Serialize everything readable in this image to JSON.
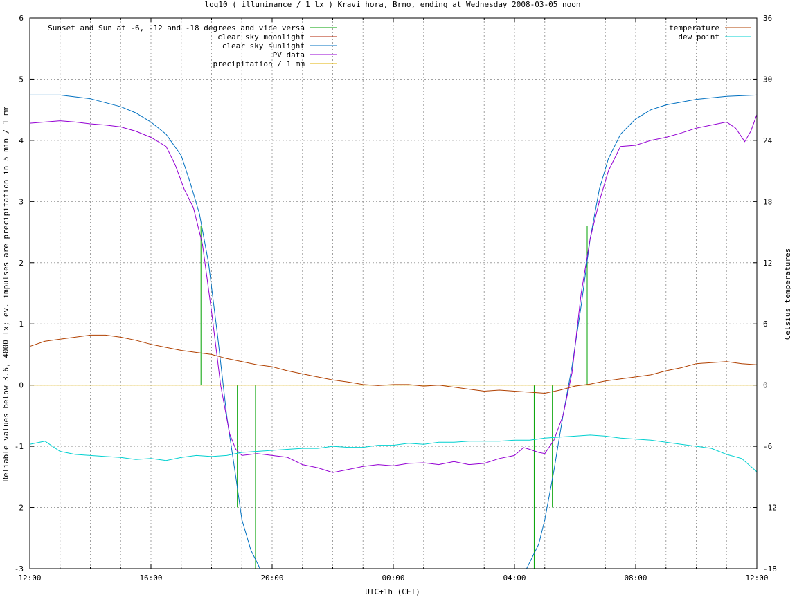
{
  "chart_data": {
    "type": "line",
    "title": "log10 ( illuminance / 1 lx ) Kravi hora, Brno, ending at Wednesday 2008-03-05 noon",
    "xlabel": "UTC+1h (CET)",
    "ylabel": "Reliable values below 3.6, 4000 lx; ev. impulses are precipitation in 5 min / 1 mm",
    "y2label": "Celsius temperatures",
    "x_ticks": [
      "12:00",
      "16:00",
      "20:00",
      "00:00",
      "04:00",
      "08:00",
      "12:00"
    ],
    "xlim_hours": [
      0,
      24
    ],
    "ylim": [
      -3,
      6
    ],
    "y_ticks": [
      "-3",
      "-2",
      "-1",
      "0",
      "1",
      "2",
      "3",
      "4",
      "5",
      "6"
    ],
    "y2lim": [
      -18,
      36
    ],
    "y2_ticks": [
      "-18",
      "-12",
      "-6",
      "0",
      "6",
      "12",
      "18",
      "24",
      "30",
      "36"
    ],
    "grid": true,
    "legend_left_position": "top-left",
    "legend_right_position": "top-right",
    "colors": {
      "sun_events": "#00a000",
      "moonlight": "#b02000",
      "sunlight": "#0070c0",
      "pv": "#9400d3",
      "precip": "#e0b000",
      "temperature": "#b04000",
      "dewpoint": "#00d0d0",
      "grid": "#a0a0a0"
    },
    "series": [
      {
        "name": "Sunset and Sun at -6, -12 and -18 degrees and vice versa",
        "axis": "left",
        "kind": "impulses",
        "impulses": [
          [
            5.65,
            2.6
          ],
          [
            6.2,
            0
          ],
          [
            6.85,
            -2.0
          ],
          [
            7.45,
            -3.0
          ],
          [
            16.65,
            -3.0
          ],
          [
            17.25,
            -2.0
          ],
          [
            17.85,
            0
          ],
          [
            18.4,
            2.6
          ]
        ]
      },
      {
        "name": "clear sky moonlight",
        "axis": "left",
        "points": []
      },
      {
        "name": "clear sky sunlight",
        "axis": "left",
        "points": [
          [
            0,
            4.74
          ],
          [
            1,
            4.74
          ],
          [
            2,
            4.68
          ],
          [
            3,
            4.55
          ],
          [
            3.5,
            4.45
          ],
          [
            4,
            4.3
          ],
          [
            4.5,
            4.1
          ],
          [
            5,
            3.75
          ],
          [
            5.3,
            3.3
          ],
          [
            5.6,
            2.8
          ],
          [
            5.9,
            2.0
          ],
          [
            6.2,
            0.8
          ],
          [
            6.5,
            -0.5
          ],
          [
            6.8,
            -1.5
          ],
          [
            7.0,
            -2.2
          ],
          [
            7.3,
            -2.7
          ],
          [
            7.6,
            -3.0
          ],
          [
            16.4,
            -3.0
          ],
          [
            16.8,
            -2.6
          ],
          [
            17.0,
            -2.2
          ],
          [
            17.3,
            -1.4
          ],
          [
            17.6,
            -0.5
          ],
          [
            17.9,
            0.3
          ],
          [
            18.2,
            1.3
          ],
          [
            18.5,
            2.4
          ],
          [
            18.8,
            3.2
          ],
          [
            19.1,
            3.7
          ],
          [
            19.5,
            4.1
          ],
          [
            20,
            4.35
          ],
          [
            20.5,
            4.5
          ],
          [
            21,
            4.58
          ],
          [
            22,
            4.67
          ],
          [
            23,
            4.72
          ],
          [
            24,
            4.74
          ]
        ]
      },
      {
        "name": "PV data",
        "axis": "left",
        "points": [
          [
            0,
            4.28
          ],
          [
            0.5,
            4.3
          ],
          [
            1,
            4.32
          ],
          [
            1.5,
            4.3
          ],
          [
            2,
            4.27
          ],
          [
            2.5,
            4.25
          ],
          [
            3,
            4.22
          ],
          [
            3.5,
            4.15
          ],
          [
            4,
            4.05
          ],
          [
            4.5,
            3.9
          ],
          [
            4.8,
            3.6
          ],
          [
            5.1,
            3.2
          ],
          [
            5.4,
            2.9
          ],
          [
            5.7,
            2.3
          ],
          [
            6.0,
            1.2
          ],
          [
            6.3,
            0.0
          ],
          [
            6.6,
            -0.8
          ],
          [
            6.8,
            -1.05
          ],
          [
            7.0,
            -1.15
          ],
          [
            7.5,
            -1.12
          ],
          [
            8,
            -1.15
          ],
          [
            8.5,
            -1.18
          ],
          [
            9,
            -1.3
          ],
          [
            9.5,
            -1.35
          ],
          [
            10,
            -1.43
          ],
          [
            10.5,
            -1.38
          ],
          [
            11,
            -1.33
          ],
          [
            11.5,
            -1.3
          ],
          [
            12,
            -1.32
          ],
          [
            12.5,
            -1.28
          ],
          [
            13,
            -1.27
          ],
          [
            13.5,
            -1.3
          ],
          [
            14,
            -1.25
          ],
          [
            14.5,
            -1.3
          ],
          [
            15,
            -1.28
          ],
          [
            15.5,
            -1.2
          ],
          [
            16,
            -1.15
          ],
          [
            16.3,
            -1.02
          ],
          [
            16.5,
            -1.05
          ],
          [
            16.8,
            -1.1
          ],
          [
            17.0,
            -1.12
          ],
          [
            17.3,
            -0.9
          ],
          [
            17.6,
            -0.5
          ],
          [
            17.9,
            0.2
          ],
          [
            18.2,
            1.5
          ],
          [
            18.5,
            2.4
          ],
          [
            18.8,
            3.0
          ],
          [
            19.1,
            3.5
          ],
          [
            19.5,
            3.9
          ],
          [
            20,
            3.92
          ],
          [
            20.5,
            4.0
          ],
          [
            21,
            4.05
          ],
          [
            21.5,
            4.12
          ],
          [
            22,
            4.2
          ],
          [
            22.5,
            4.25
          ],
          [
            23,
            4.3
          ],
          [
            23.3,
            4.2
          ],
          [
            23.6,
            3.98
          ],
          [
            23.8,
            4.15
          ],
          [
            24,
            4.42
          ]
        ]
      },
      {
        "name": "precipitation / 1 mm",
        "axis": "left",
        "points": [
          [
            0,
            0
          ],
          [
            24,
            0
          ]
        ]
      },
      {
        "name": "temperature",
        "axis": "right",
        "points": [
          [
            0,
            3.8
          ],
          [
            0.5,
            4.3
          ],
          [
            1,
            4.5
          ],
          [
            1.5,
            4.7
          ],
          [
            2,
            4.9
          ],
          [
            2.5,
            4.9
          ],
          [
            3,
            4.7
          ],
          [
            3.5,
            4.4
          ],
          [
            4,
            4.0
          ],
          [
            4.5,
            3.7
          ],
          [
            5,
            3.4
          ],
          [
            5.5,
            3.2
          ],
          [
            6,
            3.0
          ],
          [
            6.5,
            2.6
          ],
          [
            7,
            2.3
          ],
          [
            7.5,
            2.0
          ],
          [
            8,
            1.8
          ],
          [
            8.5,
            1.4
          ],
          [
            9,
            1.1
          ],
          [
            9.5,
            0.8
          ],
          [
            10,
            0.5
          ],
          [
            10.5,
            0.3
          ],
          [
            11,
            0.05
          ],
          [
            11.5,
            -0.05
          ],
          [
            12,
            0.05
          ],
          [
            12.5,
            0.05
          ],
          [
            13,
            -0.1
          ],
          [
            13.5,
            0.0
          ],
          [
            14,
            -0.2
          ],
          [
            14.5,
            -0.4
          ],
          [
            15,
            -0.6
          ],
          [
            15.5,
            -0.5
          ],
          [
            16,
            -0.6
          ],
          [
            16.5,
            -0.7
          ],
          [
            17,
            -0.8
          ],
          [
            17.5,
            -0.5
          ],
          [
            18,
            -0.1
          ],
          [
            18.5,
            0.1
          ],
          [
            19,
            0.4
          ],
          [
            19.5,
            0.6
          ],
          [
            20,
            0.8
          ],
          [
            20.5,
            1.0
          ],
          [
            21,
            1.4
          ],
          [
            21.5,
            1.7
          ],
          [
            22,
            2.1
          ],
          [
            22.5,
            2.2
          ],
          [
            23,
            2.3
          ],
          [
            23.5,
            2.1
          ],
          [
            24,
            2.0
          ]
        ]
      },
      {
        "name": "dew point",
        "axis": "right",
        "points": [
          [
            0,
            -5.8
          ],
          [
            0.5,
            -5.5
          ],
          [
            1,
            -6.5
          ],
          [
            1.5,
            -6.8
          ],
          [
            2,
            -6.9
          ],
          [
            2.5,
            -7.0
          ],
          [
            3,
            -7.1
          ],
          [
            3.5,
            -7.3
          ],
          [
            4,
            -7.2
          ],
          [
            4.5,
            -7.4
          ],
          [
            5,
            -7.1
          ],
          [
            5.5,
            -6.9
          ],
          [
            6,
            -7.0
          ],
          [
            6.5,
            -6.9
          ],
          [
            7,
            -6.6
          ],
          [
            7.5,
            -6.5
          ],
          [
            8,
            -6.4
          ],
          [
            8.5,
            -6.3
          ],
          [
            9,
            -6.2
          ],
          [
            9.5,
            -6.2
          ],
          [
            10,
            -6.0
          ],
          [
            10.5,
            -6.1
          ],
          [
            11,
            -6.1
          ],
          [
            11.5,
            -5.9
          ],
          [
            12,
            -5.9
          ],
          [
            12.5,
            -5.7
          ],
          [
            13,
            -5.8
          ],
          [
            13.5,
            -5.6
          ],
          [
            14,
            -5.6
          ],
          [
            14.5,
            -5.5
          ],
          [
            15,
            -5.5
          ],
          [
            15.5,
            -5.5
          ],
          [
            16,
            -5.4
          ],
          [
            16.5,
            -5.4
          ],
          [
            17,
            -5.2
          ],
          [
            17.5,
            -5.1
          ],
          [
            18,
            -5.0
          ],
          [
            18.5,
            -4.9
          ],
          [
            19,
            -5.0
          ],
          [
            19.5,
            -5.2
          ],
          [
            20,
            -5.3
          ],
          [
            20.5,
            -5.4
          ],
          [
            21,
            -5.6
          ],
          [
            21.5,
            -5.8
          ],
          [
            22,
            -6.0
          ],
          [
            22.5,
            -6.2
          ],
          [
            23,
            -6.8
          ],
          [
            23.5,
            -7.2
          ],
          [
            24,
            -8.5
          ]
        ]
      }
    ]
  }
}
